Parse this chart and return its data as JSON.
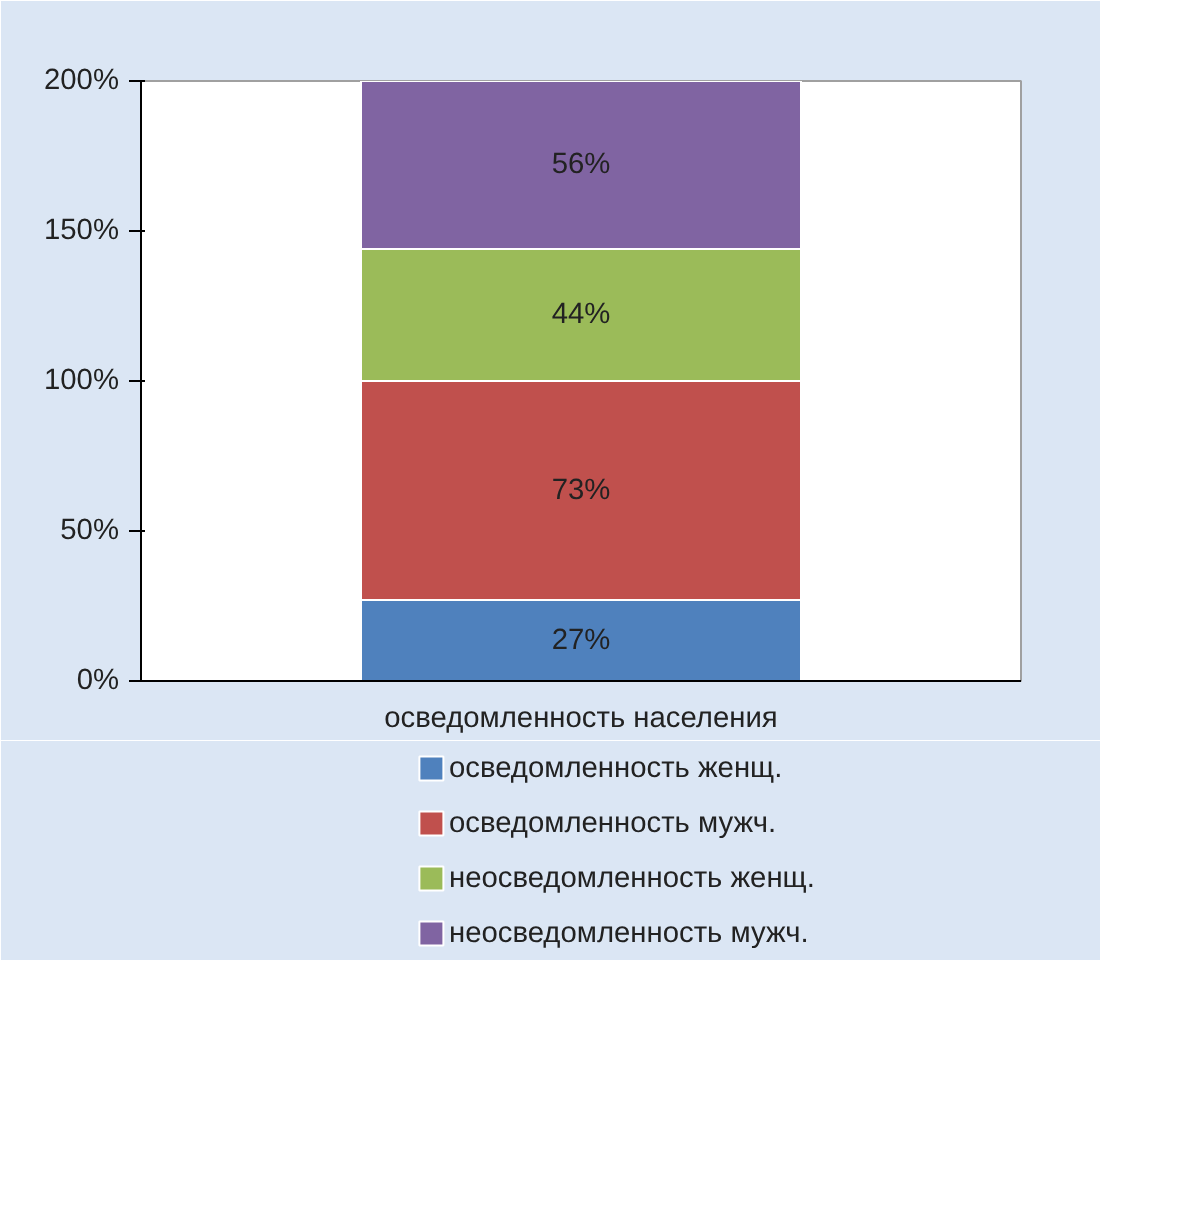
{
  "chart_data": {
    "type": "bar",
    "stacked": true,
    "categories": [
      "осведомленность населения"
    ],
    "series": [
      {
        "name": "осведомленность женщ.",
        "color": "#4f81bd",
        "values": [
          27
        ],
        "value_labels": [
          "27%"
        ]
      },
      {
        "name": "осведомленность мужч.",
        "color": "#c0504d",
        "values": [
          73
        ],
        "value_labels": [
          "73%"
        ]
      },
      {
        "name": "неосведомленность женщ.",
        "color": "#9bbb59",
        "values": [
          44
        ],
        "value_labels": [
          "44%"
        ]
      },
      {
        "name": "неосведомленность мужч.",
        "color": "#8064a2",
        "values": [
          56
        ],
        "value_labels": [
          "56%"
        ]
      }
    ],
    "ylim": [
      0,
      200
    ],
    "yticks": [
      {
        "value": 0,
        "label": "0%"
      },
      {
        "value": 50,
        "label": "50%"
      },
      {
        "value": 100,
        "label": "100%"
      },
      {
        "value": 150,
        "label": "150%"
      },
      {
        "value": 200,
        "label": "200%"
      }
    ],
    "legend": "bottom"
  }
}
